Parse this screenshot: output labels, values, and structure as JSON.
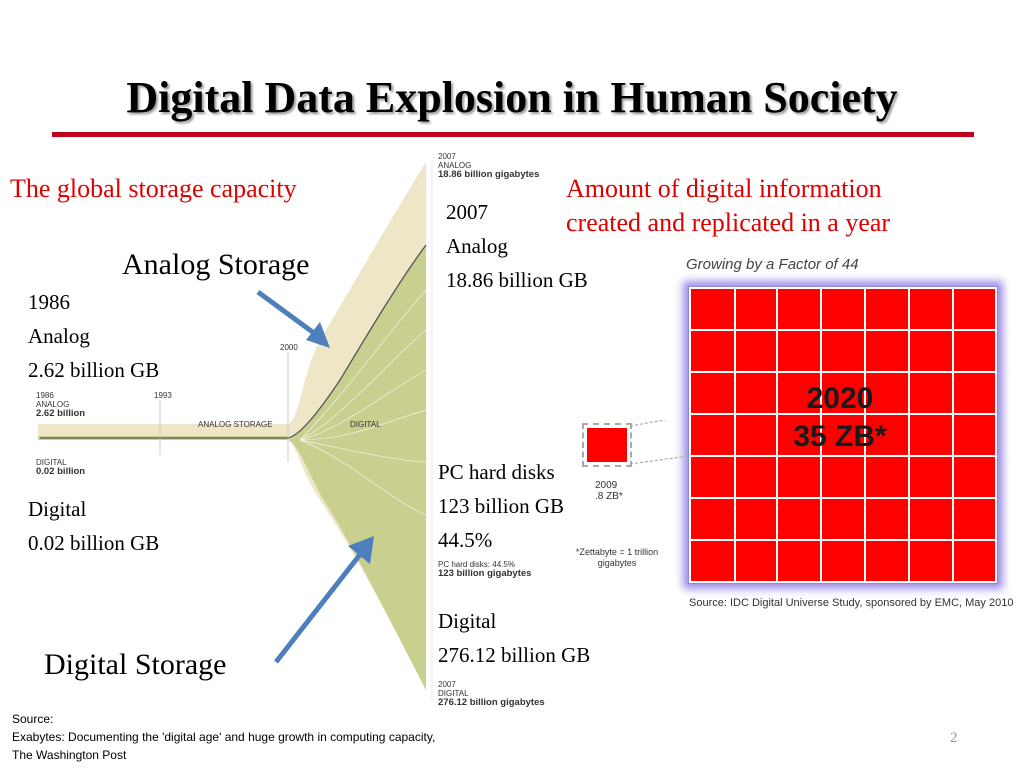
{
  "slide": {
    "title": "Digital Data Explosion in Human Society",
    "page_number": "2"
  },
  "left_heading": "The global storage capacity",
  "right_heading": {
    "line1": "Amount of  digital information",
    "line2": "created and replicated in a year"
  },
  "labels": {
    "analog_storage": "Analog Storage",
    "digital_storage": "Digital Storage"
  },
  "callouts": {
    "y1986_year": "1986",
    "y1986_type": "Analog",
    "y1986_value": "2.62 billion GB",
    "digital_1986_type": "Digital",
    "digital_1986_value": "0.02 billion GB",
    "y2007_year": "2007",
    "y2007_type": "Analog",
    "y2007_value": "18.86 billion GB",
    "pc_label": "PC hard disks",
    "pc_value": "123 billion GB",
    "pc_percent": "44.5%",
    "digital_2007_type": "Digital",
    "digital_2007_value": "276.12 billion GB"
  },
  "storage_chart": {
    "top_year": "2007",
    "top_type": "ANALOG",
    "top_value": "18.86 billion gigabytes",
    "left_year": "1986",
    "left_type": "ANALOG",
    "left_value": "2.62 billion",
    "left_digital_type": "DIGITAL",
    "left_digital_value": "0.02 billion",
    "tick_1993": "1993",
    "tick_2000": "2000",
    "band_analog": "ANALOG STORAGE",
    "band_digital": "DIGITAL",
    "pc_small": "PC hard disks: 44.5%",
    "pc_small_value": "123 billion gigabytes",
    "bottom_year": "2007",
    "bottom_type": "DIGITAL",
    "bottom_value": "276.12 billion gigabytes",
    "colors": {
      "analog": "#efe6c8",
      "digital": "#c9cf8f",
      "line": "#555555"
    }
  },
  "growth_chart": {
    "title": "Growing by a Factor of 44",
    "big_year": "2020",
    "big_value": "35 ZB*",
    "small_year": "2009",
    "small_value": ".8 ZB*",
    "note": "*Zettabyte = 1 trillion gigabytes",
    "source": "Source: IDC Digital Universe Study, sponsored by EMC, May 2010",
    "colors": {
      "cell": "#ff0000",
      "glow": "#9d8fe8"
    }
  },
  "source_note": {
    "line1": "Source:",
    "line2": "Exabytes: Documenting the 'digital age' and huge growth in computing capacity,",
    "line3": "The Washington Post"
  }
}
